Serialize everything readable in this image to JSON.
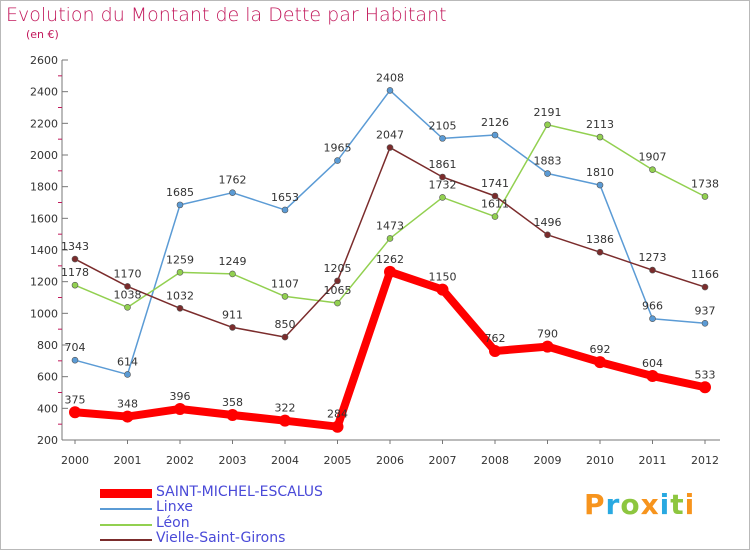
{
  "title": "Evolution du Montant de la Dette par Habitant",
  "subtitle": "(en €)",
  "logo": {
    "text": "Proxiti",
    "colors": [
      "#f7941d",
      "#29a9e1",
      "#8dc63f",
      "#f7941d",
      "#29a9e1",
      "#8dc63f",
      "#f7941d"
    ]
  },
  "chart_data": {
    "type": "line",
    "title": "Evolution du Montant de la Dette par Habitant",
    "subtitle": "(en €)",
    "xlabel": "",
    "ylabel": "",
    "ylim": [
      200,
      2600
    ],
    "yticks": [
      200,
      400,
      600,
      800,
      1000,
      1200,
      1400,
      1600,
      1800,
      2000,
      2200,
      2400,
      2600
    ],
    "x": [
      "2000",
      "2001",
      "2002",
      "2003",
      "2004",
      "2005",
      "2006",
      "2007",
      "2008",
      "2009",
      "2010",
      "2011",
      "2012"
    ],
    "grid": false,
    "legend_position": "bottom-left",
    "series": [
      {
        "name": "SAINT-MICHEL-ESCALUS",
        "color": "#ff0000",
        "values": [
          375,
          348,
          396,
          358,
          322,
          284,
          1262,
          1150,
          762,
          790,
          692,
          604,
          533
        ]
      },
      {
        "name": "Linxe",
        "color": "#5b9bd5",
        "values": [
          704,
          614,
          1685,
          1762,
          1653,
          1965,
          2408,
          2105,
          2126,
          1883,
          1810,
          966,
          937
        ]
      },
      {
        "name": "Léon",
        "color": "#92d050",
        "values": [
          1178,
          1038,
          1259,
          1249,
          1107,
          1065,
          1473,
          1732,
          1611,
          2191,
          2113,
          1907,
          1738
        ]
      },
      {
        "name": "Vielle-Saint-Girons",
        "color": "#7b2c2c",
        "values": [
          1343,
          1170,
          1032,
          911,
          850,
          1205,
          2047,
          1861,
          1741,
          1496,
          1386,
          1273,
          1166
        ]
      }
    ]
  }
}
